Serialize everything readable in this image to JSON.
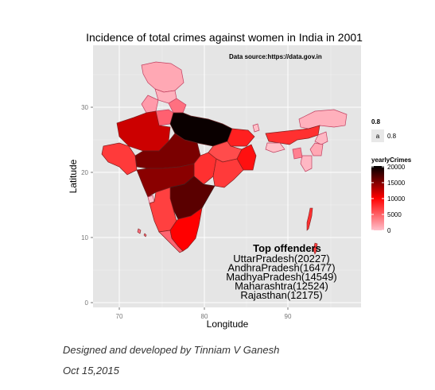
{
  "chart_data": {
    "type": "choropleth map",
    "title": "Incidence of total crimes against women in India in  2001",
    "xlabel": "Longitude",
    "ylabel": "Latitude",
    "xlim": [
      67,
      99
    ],
    "ylim": [
      6.5,
      37.5
    ],
    "x_ticks": [
      70,
      80,
      90
    ],
    "y_ticks": [
      0,
      10,
      20,
      30
    ],
    "grid": true,
    "source_note": "Data source:https://data.gov.in",
    "alpha_legend": {
      "title": "0.8",
      "key_glyph": "a",
      "label": "0.8"
    },
    "color_legend": {
      "title": "yearlyCrimes",
      "breaks": [
        0,
        5000,
        10000,
        15000,
        20000
      ],
      "range": [
        0,
        20227
      ],
      "low_color": "#ffc0cb",
      "mid_color": "#ff0000",
      "high_color": "#000000"
    },
    "annotation": {
      "heading": "Top offenders",
      "lines": [
        "UttarPradesh(20227)",
        "AndhraPradesh(16477)",
        "MadhyaPradesh(14549)",
        "Maharashtra(12524)",
        "Rajasthan(12175)"
      ]
    },
    "regions": [
      {
        "name": "Uttar Pradesh",
        "value": 20227
      },
      {
        "name": "Andhra Pradesh",
        "value": 16477
      },
      {
        "name": "Madhya Pradesh",
        "value": 14549
      },
      {
        "name": "Maharashtra",
        "value": 12524
      },
      {
        "name": "Rajasthan",
        "value": 12175
      }
    ]
  },
  "footer": {
    "credit": "Designed and developed by Tinniam V Ganesh",
    "date": "Oct 15,2015"
  }
}
